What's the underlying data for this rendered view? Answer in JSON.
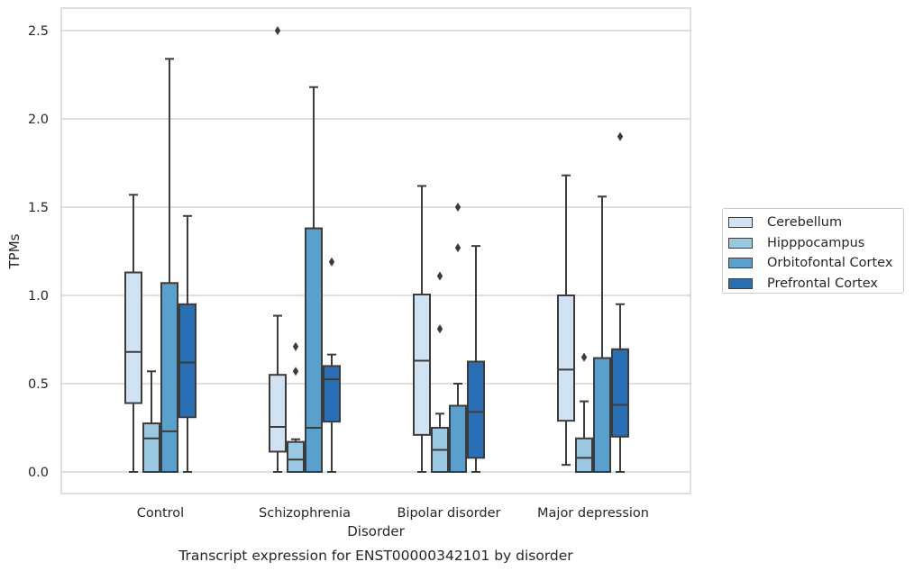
{
  "chart_data": {
    "type": "boxplot",
    "title": "Transcript expression for ENST00000342101 by disorder",
    "xlabel": "Disorder",
    "ylabel": "TPMs",
    "ylim": [
      -0.12,
      2.6
    ],
    "yticks": [
      0.0,
      0.5,
      1.0,
      1.5,
      2.0,
      2.5
    ],
    "ytick_labels": [
      "0.0",
      "0.5",
      "1.0",
      "1.5",
      "2.0",
      "2.5"
    ],
    "grid": "horizontal",
    "legend_position": "right",
    "categories": [
      "Control",
      "Schizophrenia",
      "Bipolar disorder",
      "Major depression"
    ],
    "series": [
      {
        "name": "Cerebellum",
        "color": "#d1e2f2",
        "boxes": [
          {
            "whislo": 0.0,
            "q1": 0.39,
            "med": 0.68,
            "q3": 1.13,
            "whishi": 1.57,
            "fliers": []
          },
          {
            "whislo": 0.0,
            "q1": 0.115,
            "med": 0.255,
            "q3": 0.55,
            "whishi": 0.885,
            "fliers": [
              2.5
            ]
          },
          {
            "whislo": 0.0,
            "q1": 0.21,
            "med": 0.63,
            "q3": 1.005,
            "whishi": 1.62,
            "fliers": []
          },
          {
            "whislo": 0.04,
            "q1": 0.29,
            "med": 0.58,
            "q3": 1.0,
            "whishi": 1.68,
            "fliers": []
          }
        ]
      },
      {
        "name": "Hipppocampus",
        "color": "#9ac8e0",
        "boxes": [
          {
            "whislo": 0.0,
            "q1": 0.0,
            "med": 0.19,
            "q3": 0.275,
            "whishi": 0.57,
            "fliers": []
          },
          {
            "whislo": 0.0,
            "q1": 0.0,
            "med": 0.07,
            "q3": 0.17,
            "whishi": 0.185,
            "fliers": [
              0.57,
              0.71
            ]
          },
          {
            "whislo": 0.0,
            "q1": 0.0,
            "med": 0.125,
            "q3": 0.25,
            "whishi": 0.33,
            "fliers": [
              0.81,
              1.11
            ]
          },
          {
            "whislo": 0.0,
            "q1": 0.0,
            "med": 0.08,
            "q3": 0.19,
            "whishi": 0.4,
            "fliers": [
              0.65
            ]
          }
        ]
      },
      {
        "name": "Orbitofontal Cortex",
        "color": "#5aa0cd",
        "boxes": [
          {
            "whislo": 0.0,
            "q1": 0.0,
            "med": 0.23,
            "q3": 1.07,
            "whishi": 2.34,
            "fliers": []
          },
          {
            "whislo": 0.0,
            "q1": 0.0,
            "med": 0.25,
            "q3": 1.38,
            "whishi": 2.18,
            "fliers": []
          },
          {
            "whislo": 0.0,
            "q1": 0.0,
            "med": 0.0,
            "q3": 0.375,
            "whishi": 0.5,
            "fliers": [
              1.27,
              1.5
            ]
          },
          {
            "whislo": 0.0,
            "q1": 0.0,
            "med": 0.0,
            "q3": 0.645,
            "whishi": 1.56,
            "fliers": []
          }
        ]
      },
      {
        "name": "Prefrontal Cortex",
        "color": "#2a6fb4",
        "boxes": [
          {
            "whislo": 0.0,
            "q1": 0.31,
            "med": 0.62,
            "q3": 0.95,
            "whishi": 1.45,
            "fliers": []
          },
          {
            "whislo": 0.0,
            "q1": 0.285,
            "med": 0.525,
            "q3": 0.6,
            "whishi": 0.665,
            "fliers": [
              1.19
            ]
          },
          {
            "whislo": 0.0,
            "q1": 0.08,
            "med": 0.34,
            "q3": 0.625,
            "whishi": 1.28,
            "fliers": []
          },
          {
            "whislo": 0.0,
            "q1": 0.2,
            "med": 0.38,
            "q3": 0.695,
            "whishi": 0.95,
            "fliers": [
              1.9
            ]
          }
        ]
      }
    ]
  }
}
